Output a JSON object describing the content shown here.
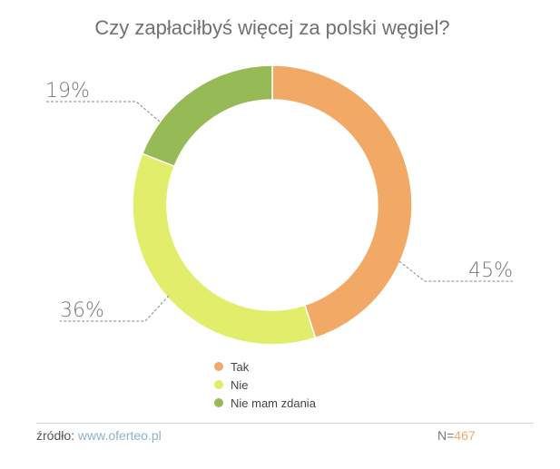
{
  "chart_data": {
    "type": "pie",
    "variant": "donut",
    "title": "Czy zapłaciłbyś więcej za polski węgiel?",
    "slices": [
      {
        "name": "Tak",
        "value": 45,
        "label": "45%",
        "color": "#f2a965"
      },
      {
        "name": "Nie",
        "value": 36,
        "label": "36%",
        "color": "#e1ed6b"
      },
      {
        "name": "Nie mam zdania",
        "value": 19,
        "label": "19%",
        "color": "#96bb56"
      }
    ],
    "legend_position": "bottom"
  },
  "footer": {
    "source_label": "źródło:",
    "source_link": "www.oferteo.pl",
    "sample_label": "N=",
    "sample_value": "467"
  }
}
